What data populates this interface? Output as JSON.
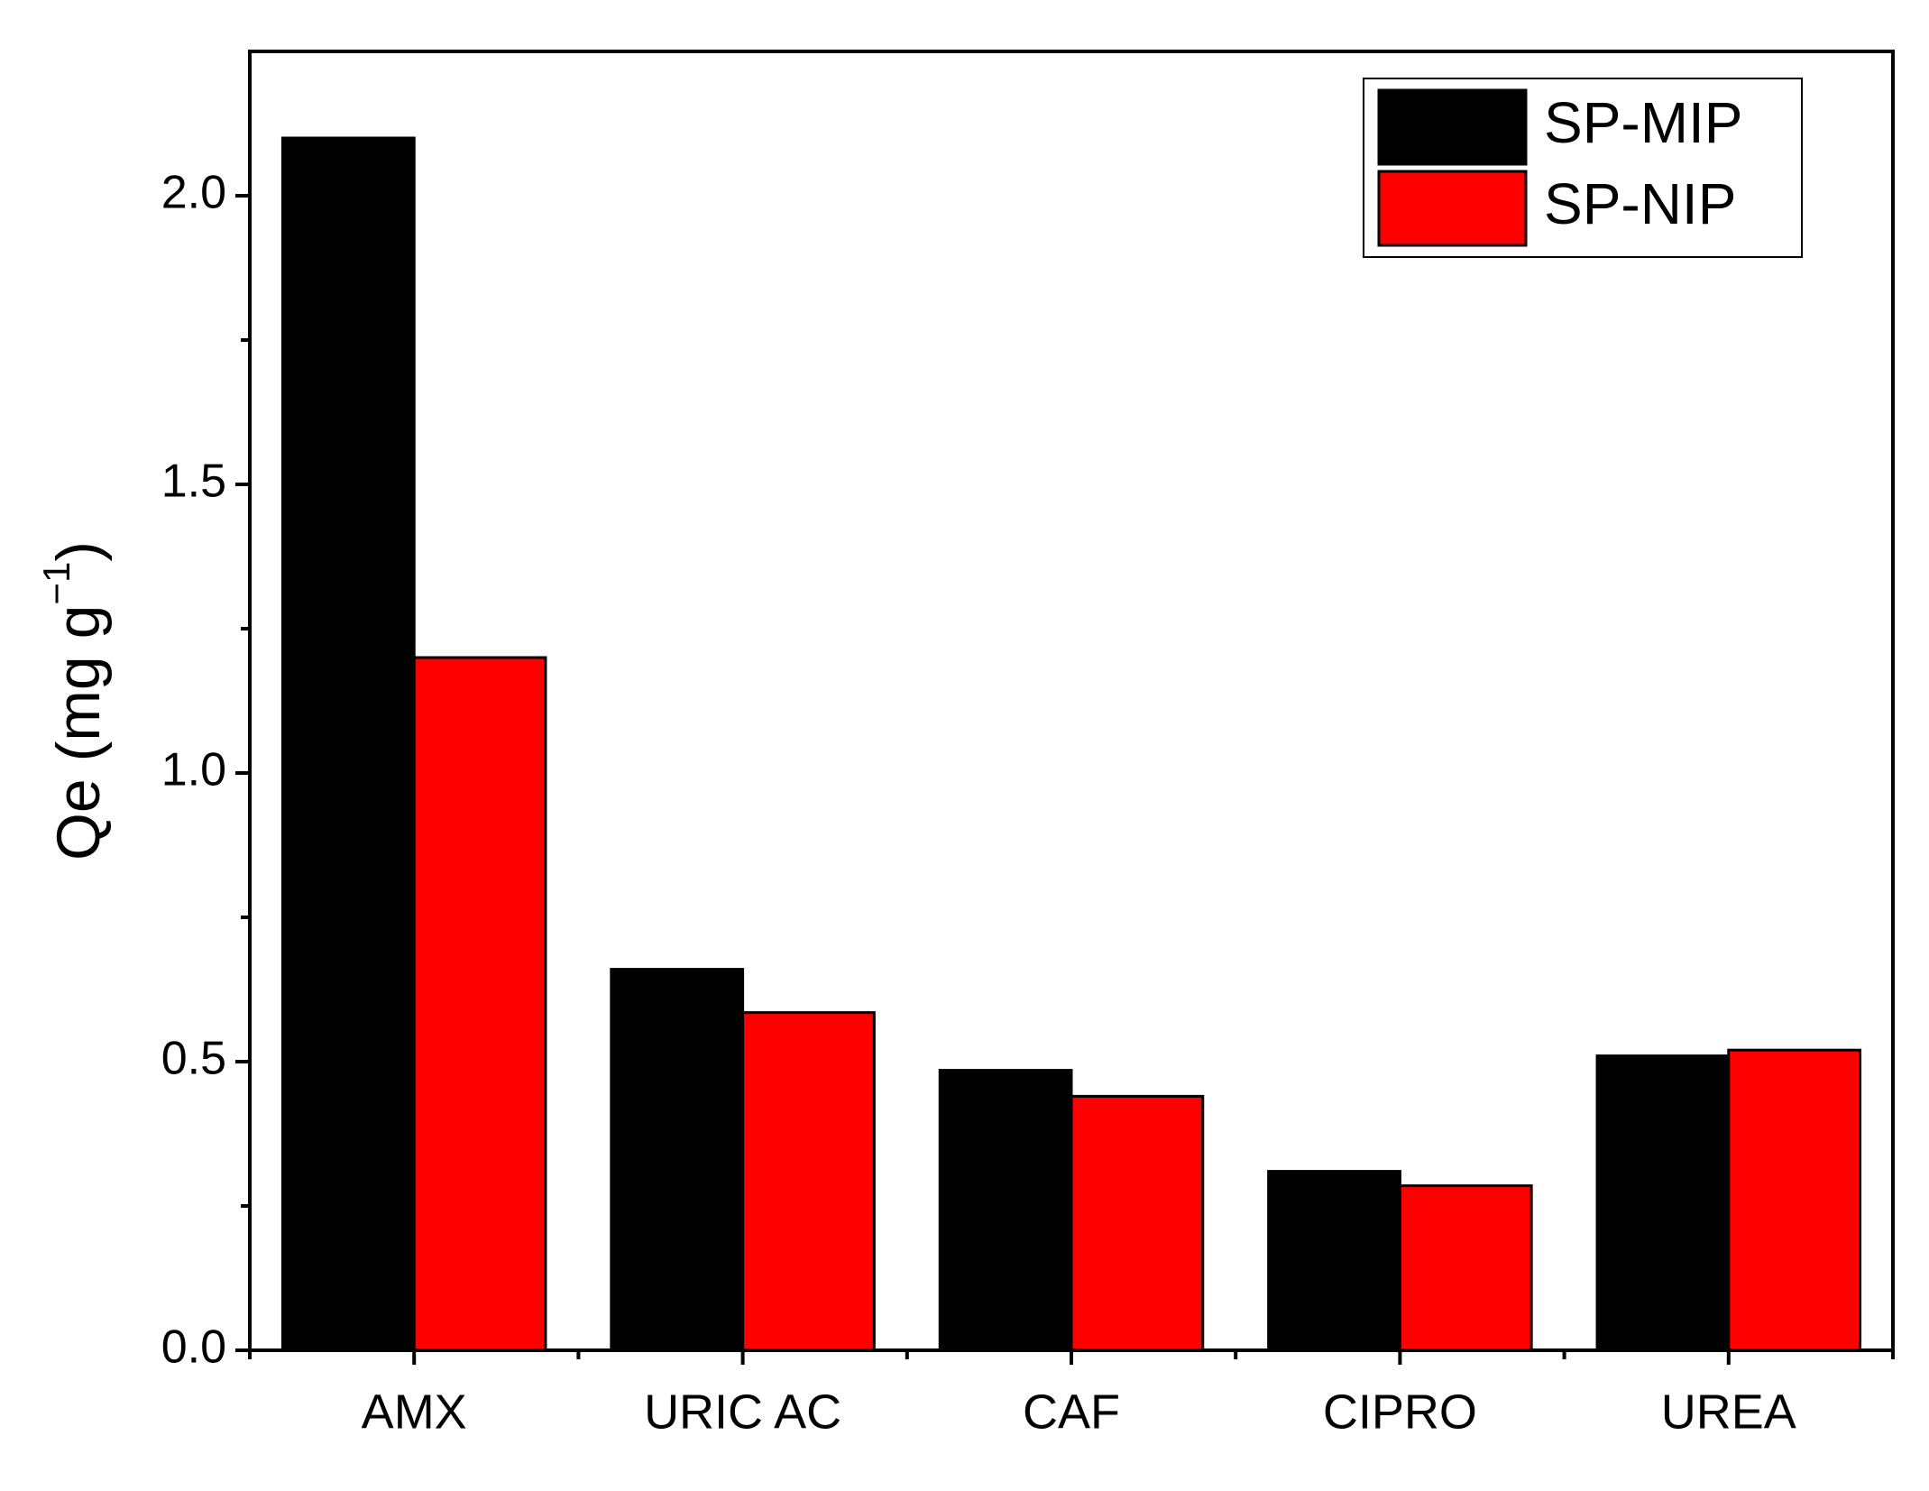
{
  "chart_data": {
    "type": "bar",
    "ylabel": {
      "text": "Qe (mg g",
      "superscript": "−1",
      "suffix": ")"
    },
    "categories": [
      "AMX",
      "URIC AC",
      "CAF",
      "CIPRO",
      "UREA"
    ],
    "series": [
      {
        "name": "SP-MIP",
        "color": "#000000",
        "values": [
          2.1,
          0.66,
          0.485,
          0.31,
          0.51
        ]
      },
      {
        "name": "SP-NIP",
        "color": "#ff0000",
        "values": [
          1.2,
          0.585,
          0.44,
          0.285,
          0.52
        ]
      }
    ],
    "ylim": [
      0,
      2.25
    ],
    "yticks": [
      {
        "value": 0,
        "label": "0.0"
      },
      {
        "value": 0.5,
        "label": "0.5"
      },
      {
        "value": 1,
        "label": "1.0"
      },
      {
        "value": 1.5,
        "label": "1.5"
      },
      {
        "value": 2,
        "label": "2.0"
      }
    ],
    "yminorticks": [
      0.25,
      0.75,
      1.25,
      1.75
    ],
    "grid": false,
    "legend": "upper right"
  }
}
